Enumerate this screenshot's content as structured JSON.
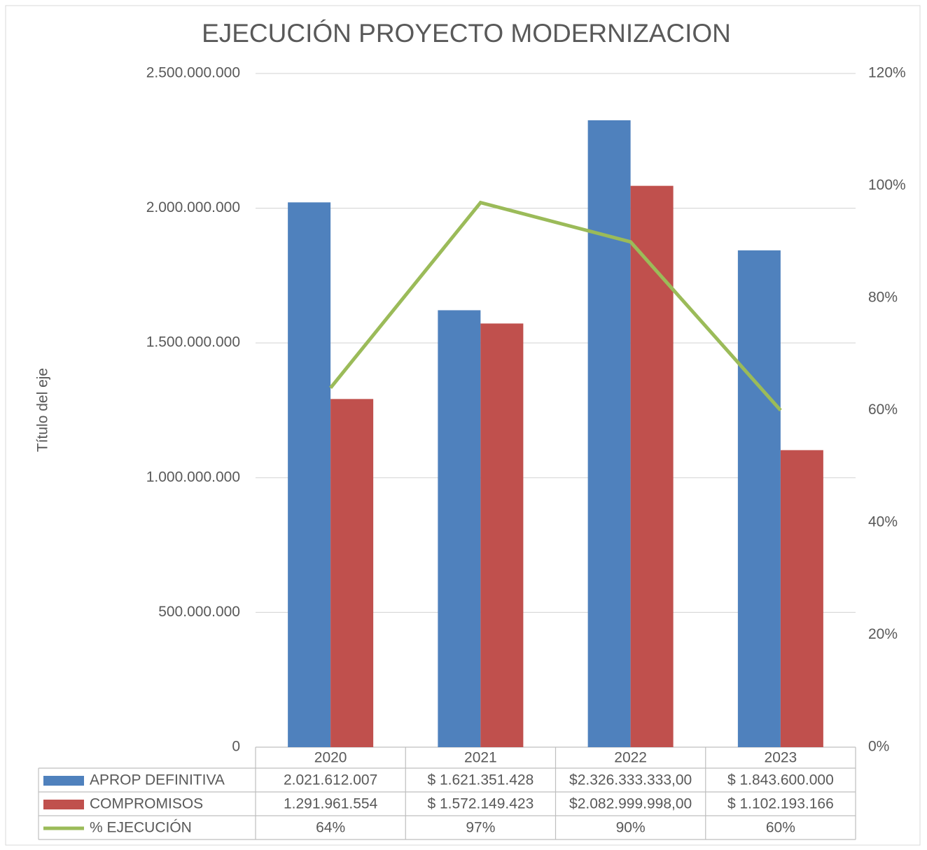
{
  "chart_data": {
    "type": "bar",
    "title": "EJECUCIÓN PROYECTO MODERNIZACION",
    "y_label": "Título del eje",
    "categories": [
      "2020",
      "2021",
      "2022",
      "2023"
    ],
    "series": [
      {
        "name": "APROP DEFINITIVA",
        "color": "#4f81bd",
        "type": "bar",
        "values": [
          2021612007,
          1621351428,
          2326333333,
          1843600000
        ],
        "value_labels": [
          "2.021.612.007",
          "$ 1.621.351.428",
          "$2.326.333.333,00",
          "$ 1.843.600.000"
        ]
      },
      {
        "name": "COMPROMISOS",
        "color": "#c0504d",
        "type": "bar",
        "values": [
          1291961554,
          1572149423,
          2082999998,
          1102193166
        ],
        "value_labels": [
          "1.291.961.554",
          "$ 1.572.149.423",
          "$2.082.999.998,00",
          "$ 1.102.193.166"
        ]
      },
      {
        "name": "% EJECUCIÓN",
        "color": "#9bbb59",
        "type": "line",
        "axis": "y2",
        "values": [
          64,
          97,
          90,
          60
        ],
        "value_labels": [
          "64%",
          "97%",
          "90%",
          "60%"
        ]
      }
    ],
    "ylim": [
      0,
      2500000000
    ],
    "yticks": [
      0,
      {
        "value": 500000000,
        "label": "500.000.000"
      },
      {
        "value": 1000000000,
        "label": "1.000.000.000"
      },
      {
        "value": 1500000000,
        "label": "1.500.000.000"
      },
      {
        "value": 2000000000,
        "label": "2.000.000.000"
      },
      {
        "value": 2500000000,
        "label": "2.500.000.000"
      }
    ],
    "y2lim": [
      0,
      120
    ],
    "y2ticks": [
      {
        "value": 0,
        "label": "0%"
      },
      {
        "value": 20,
        "label": "20%"
      },
      {
        "value": 40,
        "label": "40%"
      },
      {
        "value": 60,
        "label": "60%"
      },
      {
        "value": 80,
        "label": "80%"
      },
      {
        "value": 100,
        "label": "100%"
      },
      {
        "value": 120,
        "label": "120%"
      }
    ],
    "grid": true,
    "legend": "data-table"
  }
}
